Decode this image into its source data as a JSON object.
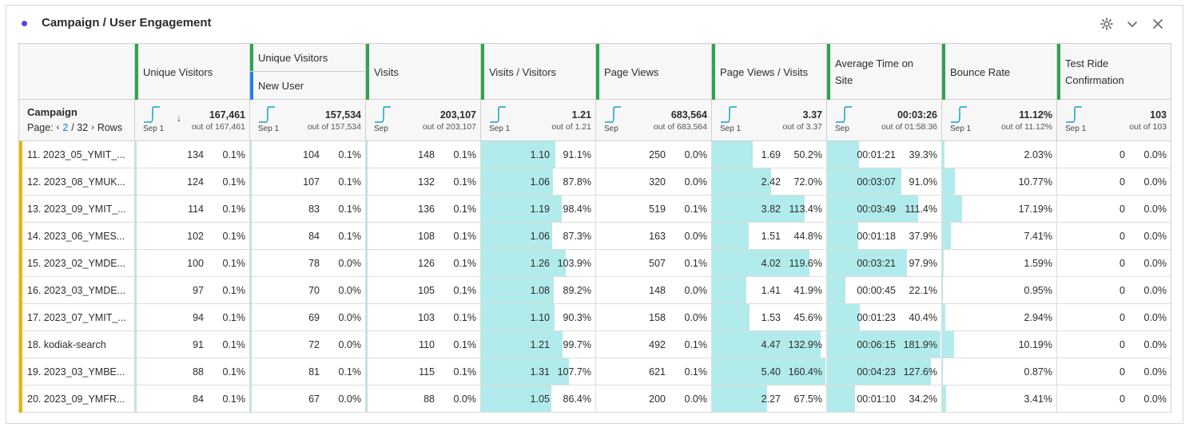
{
  "panel": {
    "title": "Campaign / User Engagement",
    "icons": [
      "gear-icon",
      "chevron-down-icon",
      "close-icon"
    ]
  },
  "dimension": {
    "header": "Campaign",
    "page_label": "Page:",
    "page_current": "2",
    "page_total": "/ 32",
    "rows_label": "Rows"
  },
  "metrics": [
    {
      "header": "Unique Visitors",
      "total": "167,461",
      "out_of": "out of 167,461",
      "spark_label": "Sep 1"
    },
    {
      "header": "Unique Visitors",
      "sub_header": "New User",
      "total": "157,534",
      "out_of": "out of 157,534",
      "spark_label": "Sep 1"
    },
    {
      "header": "Visits",
      "total": "203,107",
      "out_of": "out of 203,107",
      "spark_label": "Sep"
    },
    {
      "header": "Visits / Visitors",
      "total": "1.21",
      "out_of": "out of 1.21",
      "spark_label": "Sep 1"
    },
    {
      "header": "Page Views",
      "total": "683,564",
      "out_of": "out of 683,564",
      "spark_label": "Sep"
    },
    {
      "header": "Page Views / Visits",
      "total": "3.37",
      "out_of": "out of 3.37",
      "spark_label": "Sep 1"
    },
    {
      "header": "Average Time on Site",
      "total": "00:03:26",
      "out_of": "out of 01:58:36",
      "spark_label": "Sep"
    },
    {
      "header": "Bounce Rate",
      "total": "11.12%",
      "out_of": "out of 11.12%",
      "spark_label": "Sep 1"
    },
    {
      "header": "Test Ride Confirmation",
      "total": "103",
      "out_of": "out of 103",
      "spark_label": "Sep 1"
    }
  ],
  "rows": [
    {
      "campaign": "11.  2023_05_YMIT_...",
      "cells": [
        [
          "134",
          "0.1%"
        ],
        [
          "104",
          "0.1%"
        ],
        [
          "148",
          "0.1%"
        ],
        [
          "1.10",
          "91.1%"
        ],
        [
          "250",
          "0.0%"
        ],
        [
          "1.69",
          "50.2%"
        ],
        [
          "00:01:21",
          "39.3%"
        ],
        [
          "2.03%",
          ""
        ],
        [
          "0",
          "0.0%"
        ]
      ],
      "bars": [
        0.911,
        0.502,
        0.393,
        0.0203
      ]
    },
    {
      "campaign": "12.  2023_08_YMUK...",
      "cells": [
        [
          "124",
          "0.1%"
        ],
        [
          "107",
          "0.1%"
        ],
        [
          "132",
          "0.1%"
        ],
        [
          "1.06",
          "87.8%"
        ],
        [
          "320",
          "0.0%"
        ],
        [
          "2.42",
          "72.0%"
        ],
        [
          "00:03:07",
          "91.0%"
        ],
        [
          "10.77%",
          ""
        ],
        [
          "0",
          "0.0%"
        ]
      ],
      "bars": [
        0.878,
        0.72,
        0.91,
        0.1077
      ]
    },
    {
      "campaign": "13.  2023_09_YMIT_...",
      "cells": [
        [
          "114",
          "0.1%"
        ],
        [
          "83",
          "0.1%"
        ],
        [
          "136",
          "0.1%"
        ],
        [
          "1.19",
          "98.4%"
        ],
        [
          "519",
          "0.1%"
        ],
        [
          "3.82",
          "113.4%"
        ],
        [
          "00:03:49",
          "111.4%"
        ],
        [
          "17.19%",
          ""
        ],
        [
          "0",
          "0.0%"
        ]
      ],
      "bars": [
        0.984,
        1.134,
        1.114,
        0.1719
      ]
    },
    {
      "campaign": "14.  2023_06_YMES...",
      "cells": [
        [
          "102",
          "0.1%"
        ],
        [
          "84",
          "0.1%"
        ],
        [
          "108",
          "0.1%"
        ],
        [
          "1.06",
          "87.3%"
        ],
        [
          "163",
          "0.0%"
        ],
        [
          "1.51",
          "44.8%"
        ],
        [
          "00:01:18",
          "37.9%"
        ],
        [
          "7.41%",
          ""
        ],
        [
          "0",
          "0.0%"
        ]
      ],
      "bars": [
        0.873,
        0.448,
        0.379,
        0.0741
      ]
    },
    {
      "campaign": "15.  2023_02_YMDE...",
      "cells": [
        [
          "100",
          "0.1%"
        ],
        [
          "78",
          "0.0%"
        ],
        [
          "126",
          "0.1%"
        ],
        [
          "1.26",
          "103.9%"
        ],
        [
          "507",
          "0.1%"
        ],
        [
          "4.02",
          "119.6%"
        ],
        [
          "00:03:21",
          "97.9%"
        ],
        [
          "1.59%",
          ""
        ],
        [
          "0",
          "0.0%"
        ]
      ],
      "bars": [
        1.039,
        1.196,
        0.979,
        0.0159
      ]
    },
    {
      "campaign": "16.  2023_03_YMDE...",
      "cells": [
        [
          "97",
          "0.1%"
        ],
        [
          "70",
          "0.0%"
        ],
        [
          "105",
          "0.1%"
        ],
        [
          "1.08",
          "89.2%"
        ],
        [
          "148",
          "0.0%"
        ],
        [
          "1.41",
          "41.9%"
        ],
        [
          "00:00:45",
          "22.1%"
        ],
        [
          "0.95%",
          ""
        ],
        [
          "0",
          "0.0%"
        ]
      ],
      "bars": [
        0.892,
        0.419,
        0.221,
        0.0095
      ]
    },
    {
      "campaign": "17.  2023_07_YMIT_...",
      "cells": [
        [
          "94",
          "0.1%"
        ],
        [
          "69",
          "0.0%"
        ],
        [
          "103",
          "0.1%"
        ],
        [
          "1.10",
          "90.3%"
        ],
        [
          "158",
          "0.0%"
        ],
        [
          "1.53",
          "45.6%"
        ],
        [
          "00:01:23",
          "40.4%"
        ],
        [
          "2.94%",
          ""
        ],
        [
          "0",
          "0.0%"
        ]
      ],
      "bars": [
        0.903,
        0.456,
        0.404,
        0.0294
      ]
    },
    {
      "campaign": "18.  kodiak-search",
      "cells": [
        [
          "91",
          "0.1%"
        ],
        [
          "72",
          "0.0%"
        ],
        [
          "110",
          "0.1%"
        ],
        [
          "1.21",
          "99.7%"
        ],
        [
          "492",
          "0.1%"
        ],
        [
          "4.47",
          "132.9%"
        ],
        [
          "00:06:15",
          "181.9%"
        ],
        [
          "10.19%",
          ""
        ],
        [
          "0",
          "0.0%"
        ]
      ],
      "bars": [
        0.997,
        1.329,
        1.819,
        0.1019
      ]
    },
    {
      "campaign": "19.  2023_03_YMBE...",
      "cells": [
        [
          "88",
          "0.1%"
        ],
        [
          "81",
          "0.1%"
        ],
        [
          "115",
          "0.1%"
        ],
        [
          "1.31",
          "107.7%"
        ],
        [
          "621",
          "0.1%"
        ],
        [
          "5.40",
          "160.4%"
        ],
        [
          "00:04:23",
          "127.6%"
        ],
        [
          "0.87%",
          ""
        ],
        [
          "0",
          "0.0%"
        ]
      ],
      "bars": [
        1.077,
        1.604,
        1.276,
        0.0087
      ]
    },
    {
      "campaign": "20.  2023_09_YMFR...",
      "cells": [
        [
          "84",
          "0.1%"
        ],
        [
          "67",
          "0.0%"
        ],
        [
          "88",
          "0.0%"
        ],
        [
          "1.05",
          "86.4%"
        ],
        [
          "200",
          "0.0%"
        ],
        [
          "2.27",
          "67.5%"
        ],
        [
          "00:01:10",
          "34.2%"
        ],
        [
          "3.41%",
          ""
        ],
        [
          "0",
          "0.0%"
        ]
      ],
      "bars": [
        0.864,
        0.675,
        0.342,
        0.0341
      ]
    }
  ],
  "colors": {
    "accent": "#4b4bdc",
    "metric_grip": "#2da44e",
    "segment_grip": "#2680eb",
    "row_marker": "#e6b800",
    "bar_fill": "#b2ebeb",
    "link": "#1473e6"
  }
}
